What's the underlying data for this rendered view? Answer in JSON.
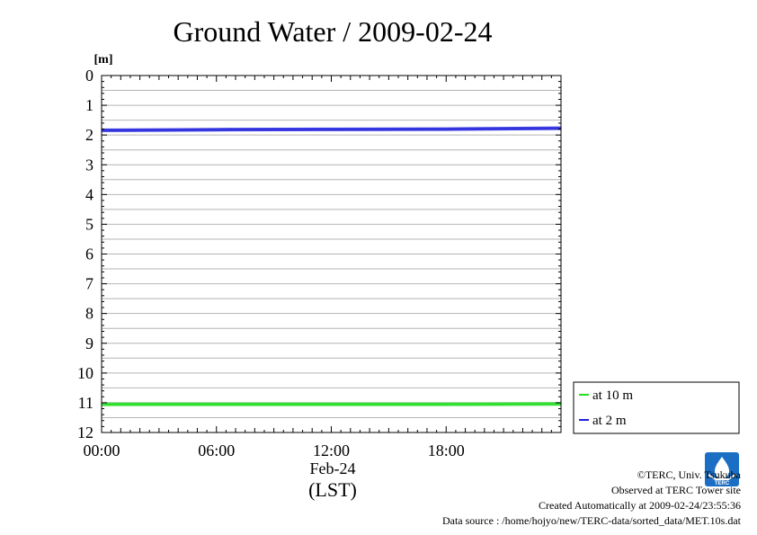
{
  "chart_data": {
    "type": "line",
    "title": "Ground Water / 2009-02-24",
    "ylabel": "[m]",
    "xlabel_lines": [
      "Feb-24",
      "(LST)"
    ],
    "y_ticks": [
      "0",
      "1",
      "2",
      "3",
      "4",
      "5",
      "6",
      "7",
      "8",
      "9",
      "10",
      "11",
      "12"
    ],
    "x_ticks": [
      "00:00",
      "06:00",
      "12:00",
      "18:00"
    ],
    "ylim": [
      0,
      12
    ],
    "y_inverted": true,
    "xlim": [
      "00:00",
      "24:00"
    ],
    "grid": true,
    "legend_position": "right-bottom",
    "series": [
      {
        "name": "at 10 m",
        "color": "#22dd22",
        "x": [
          "00:00",
          "06:00",
          "12:00",
          "18:00",
          "24:00"
        ],
        "y": [
          11.05,
          11.05,
          11.05,
          11.05,
          11.04
        ]
      },
      {
        "name": "at 2 m",
        "color": "#2222dd",
        "x": [
          "00:00",
          "04:00",
          "06:00",
          "12:00",
          "18:00",
          "24:00"
        ],
        "y": [
          1.84,
          1.83,
          1.82,
          1.81,
          1.8,
          1.77
        ]
      }
    ]
  },
  "credits": {
    "copyright": "©TERC, Univ. Tsukuba",
    "site": "Observed at TERC Tower site",
    "created": "Created Automatically at 2009-02-24/23:55:36",
    "source": "Data source : /home/hojyo/new/TERC-data/sorted_data/MET.10s.dat"
  },
  "logo": {
    "icon": "terc-logo-icon",
    "text": "TERC",
    "color": "#1a6fc4"
  }
}
